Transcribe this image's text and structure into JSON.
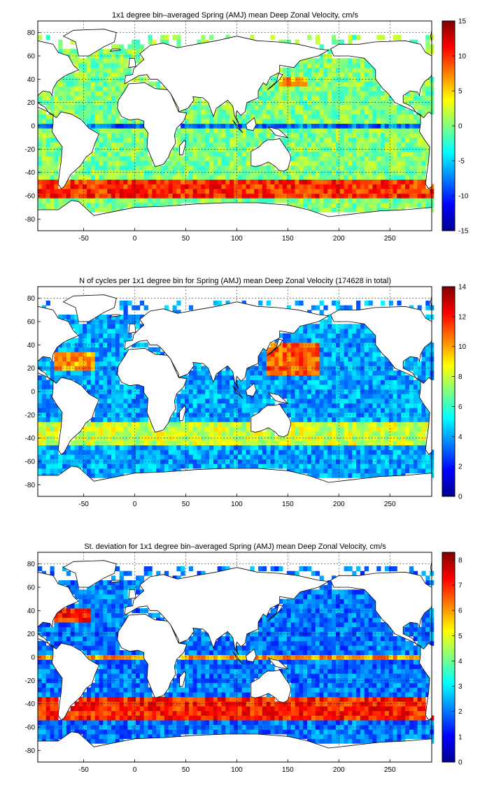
{
  "chart_data": [
    {
      "type": "heatmap",
      "id": "velocity",
      "title": "1x1 degree bin–averaged Spring (AMJ) mean Deep Zonal Velocity, cm/s",
      "xlim": [
        -95,
        291
      ],
      "ylim": [
        -90,
        90
      ],
      "x_ticks": [
        -50,
        0,
        50,
        100,
        150,
        200,
        250
      ],
      "y_ticks": [
        -80,
        -60,
        -40,
        -20,
        0,
        20,
        40,
        60,
        80
      ],
      "grid": true,
      "colorbar": {
        "range": [
          -15,
          15
        ],
        "ticks": [
          -15,
          -10,
          -5,
          0,
          5,
          10,
          15
        ],
        "colormap": "jet"
      },
      "fields": [
        {
          "description": "background deep zonal velocity over ocean",
          "value": 0
        },
        {
          "description": "Antarctic Circumpolar Current, eastward",
          "lat_band": [
            -60,
            -45
          ],
          "value": 10
        },
        {
          "description": "equatorial westward jets",
          "lat_band": [
            -3,
            3
          ],
          "value": -8
        },
        {
          "description": "Kuroshio extension",
          "lat_band": [
            33,
            40
          ],
          "lon_band": [
            140,
            170
          ],
          "value": 6
        }
      ]
    },
    {
      "type": "heatmap",
      "id": "cycles",
      "title": "N of cycles per 1x1 degree bin for Spring (AMJ) mean Deep Zonal Velocity (174628 in total)",
      "xlim": [
        -95,
        291
      ],
      "ylim": [
        -90,
        90
      ],
      "x_ticks": [
        -50,
        0,
        50,
        100,
        150,
        200,
        250
      ],
      "y_ticks": [
        -80,
        -60,
        -40,
        -20,
        0,
        20,
        40,
        60,
        80
      ],
      "grid": true,
      "colorbar": {
        "range": [
          0,
          14
        ],
        "ticks": [
          0,
          2,
          4,
          6,
          8,
          10,
          12,
          14
        ],
        "colormap": "jet"
      },
      "fields": [
        {
          "description": "typical cycles per bin",
          "value": 4
        },
        {
          "description": "subtropical North Pacific high counts",
          "lat_band": [
            15,
            40
          ],
          "lon_band": [
            130,
            180
          ],
          "value": 11
        },
        {
          "description": "subtropical North Atlantic high counts",
          "lat_band": [
            20,
            35
          ],
          "lon_band": [
            -80,
            -40
          ],
          "value": 10
        },
        {
          "description": "Southern Ocean mid-latitude counts",
          "lat_band": [
            -45,
            -25
          ],
          "value": 8
        }
      ]
    },
    {
      "type": "heatmap",
      "id": "stdev",
      "title": "St. deviation for 1x1 degree bin–averaged Spring (AMJ) mean Deep Zonal Velocity, cm/s",
      "xlim": [
        -95,
        291
      ],
      "ylim": [
        -90,
        90
      ],
      "x_ticks": [
        -50,
        0,
        50,
        100,
        150,
        200,
        250
      ],
      "y_ticks": [
        -80,
        -60,
        -40,
        -20,
        0,
        20,
        40,
        60,
        80
      ],
      "grid": true,
      "colorbar": {
        "range": [
          0,
          8.3
        ],
        "ticks": [
          0,
          1,
          2,
          3,
          4,
          5,
          6,
          7,
          8
        ],
        "colormap": "jet"
      },
      "fields": [
        {
          "description": "background standard deviation",
          "value": 2
        },
        {
          "description": "Antarctic Circumpolar Current band",
          "lat_band": [
            -55,
            -35
          ],
          "value": 7
        },
        {
          "description": "Gulf Stream",
          "lat_band": [
            32,
            42
          ],
          "lon_band": [
            -80,
            -45
          ],
          "value": 7
        },
        {
          "description": "equatorial band",
          "lat_band": [
            -3,
            3
          ],
          "value": 6
        }
      ]
    }
  ]
}
